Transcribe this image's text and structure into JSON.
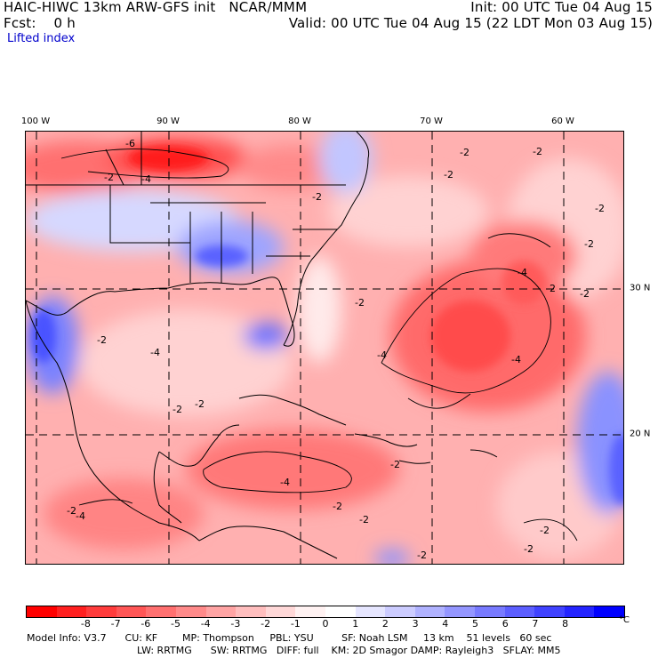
{
  "header": {
    "title": "HAIC-HIWC 13km ARW-GFS init",
    "org": "NCAR/MMM",
    "init": "Init: 00 UTC Tue 04 Aug 15",
    "fcst": "Fcst:    0 h",
    "valid": "Valid: 00 UTC Tue 04 Aug 15 (22 LDT Mon 03 Aug 15)",
    "field": "Lifted index"
  },
  "map": {
    "lon_labels": [
      "100 W",
      "90 W",
      "80 W",
      "70 W",
      "60 W"
    ],
    "lat_labels": [
      "30 N",
      "20 N"
    ],
    "contour_labels": [
      "-6",
      "-4",
      "-2",
      "-2",
      "-2",
      "-2",
      "-2",
      "-2",
      "-4",
      "-2",
      "-2",
      "-4",
      "-2",
      "-2",
      "-4",
      "-2",
      "-4",
      "-2",
      "-2",
      "-2",
      "-4",
      "-2",
      "-2",
      "-2",
      "-2",
      "-2",
      "-4",
      "-2"
    ],
    "colors": {
      "strong_red": "#ff1010",
      "red": "#ff5858",
      "light_red": "#ff9e9e",
      "pink": "#ffd2d2",
      "white": "#ffffff",
      "light_blue": "#cdd2ff",
      "blue": "#8c96ff",
      "deep_blue": "#3c46ff",
      "land_line": "#000000",
      "grid_line": "#000000"
    }
  },
  "colorbar": {
    "unit": "°C",
    "ticks": [
      "-8",
      "-7",
      "-6",
      "-5",
      "-4",
      "-3",
      "-2",
      "-1",
      "0",
      "1",
      "2",
      "3",
      "4",
      "5",
      "6",
      "7",
      "8"
    ],
    "colors": [
      "#ff0000",
      "#ff2020",
      "#ff3c3c",
      "#ff5656",
      "#ff7070",
      "#ff8a8a",
      "#ffa4a4",
      "#ffbebe",
      "#ffd8d8",
      "#fff2f2",
      "#ffffff",
      "#e6e6ff",
      "#ccccff",
      "#b0b2ff",
      "#9496ff",
      "#787aff",
      "#5c5eff",
      "#4042ff",
      "#2424ff",
      "#0000ff"
    ]
  },
  "model_info": {
    "line1": "Model Info: V3.7      CU: KF        MP: Thompson     PBL: YSU         SF: Noah LSM     13 km    51 levels   60 sec",
    "line2": "LW: RRTMG      SW: RRTMG   DIFF: full    KM: 2D Smagor DAMP: Rayleigh3   SFLAY: MM5"
  }
}
